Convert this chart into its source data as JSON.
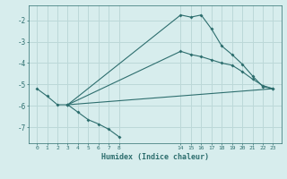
{
  "xlabel": "Humidex (Indice chaleur)",
  "bg_color": "#d7eded",
  "grid_color": "#bcd8d8",
  "line_color": "#2d6e6e",
  "l1x": [
    0,
    1,
    2,
    3,
    4,
    5,
    6,
    7,
    8
  ],
  "l1y": [
    -5.2,
    -5.55,
    -5.95,
    -5.95,
    -6.3,
    -6.65,
    -6.85,
    -7.1,
    -7.45
  ],
  "l2x": [
    3,
    14,
    15,
    16,
    17,
    18,
    19,
    20,
    21,
    22,
    23
  ],
  "l2y": [
    -5.95,
    -1.75,
    -1.85,
    -1.75,
    -2.4,
    -3.2,
    -3.6,
    -4.05,
    -4.6,
    -5.1,
    -5.2
  ],
  "l3x": [
    3,
    14,
    15,
    16,
    17,
    18,
    19,
    20,
    21,
    22,
    23
  ],
  "l3y": [
    -5.95,
    -3.45,
    -3.6,
    -3.7,
    -3.85,
    -4.0,
    -4.1,
    -4.4,
    -4.75,
    -5.05,
    -5.2
  ],
  "l4x": [
    3,
    23
  ],
  "l4y": [
    -5.95,
    -5.2
  ],
  "xticks": [
    0,
    1,
    2,
    3,
    4,
    5,
    6,
    7,
    8,
    14,
    15,
    16,
    17,
    18,
    19,
    20,
    21,
    22,
    23
  ],
  "yticks": [
    -2,
    -3,
    -4,
    -5,
    -6,
    -7
  ],
  "xlim": [
    -0.8,
    23.8
  ],
  "ylim": [
    -7.75,
    -1.3
  ]
}
